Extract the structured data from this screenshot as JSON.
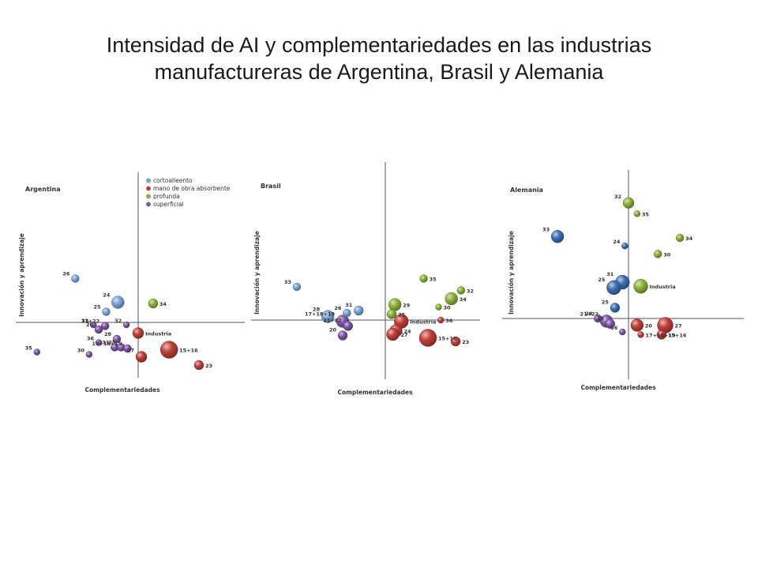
{
  "page": {
    "title_line1": "Intensidad de AI y complementariedades en las industrias",
    "title_line2": "manufactureras de Argentina, Brasil y Alemania"
  },
  "colors": {
    "cortoalleento": "#7aa6d8",
    "cortoalleento_dark": "#3f6fb3",
    "mano_de_obra_absorbente": "#c0403a",
    "profunda": "#8db33a",
    "superficial": "#7e55a8",
    "axis": "#555555"
  },
  "legend": [
    {
      "label": "cortoalleento",
      "color_key": "cortoalleento"
    },
    {
      "label": "mano de obra absorbente",
      "color_key": "mano_de_obra_absorbente"
    },
    {
      "label": "profunda",
      "color_key": "profunda"
    },
    {
      "label": "superficial",
      "color_key": "superficial"
    }
  ],
  "chart_data": [
    {
      "type": "scatter",
      "title": "Argentina",
      "xlabel": "Complementariedades",
      "ylabel": "Innovación y aprendizaje",
      "xlim": [
        -1,
        1
      ],
      "ylim": [
        -1,
        1
      ],
      "legend_position": "top-right",
      "points": [
        {
          "label": "26",
          "x": -0.59,
          "y": 0.37,
          "size": 5,
          "group": "cortoalleento"
        },
        {
          "label": "24",
          "x": -0.19,
          "y": 0.17,
          "size": 8,
          "group": "cortoalleento"
        },
        {
          "label": "25",
          "x": -0.3,
          "y": 0.09,
          "size": 5,
          "group": "cortoalleento"
        },
        {
          "label": "34",
          "x": 0.14,
          "y": 0.16,
          "size": 6,
          "group": "profunda"
        },
        {
          "label": "33",
          "x": -0.42,
          "y": -0.02,
          "size": 4,
          "group": "superficial"
        },
        {
          "label": "21+22",
          "x": -0.31,
          "y": -0.03,
          "size": 5,
          "group": "superficial"
        },
        {
          "label": "20",
          "x": -0.37,
          "y": -0.06,
          "size": 5,
          "group": "superficial"
        },
        {
          "label": "32",
          "x": -0.11,
          "y": -0.02,
          "size": 4,
          "group": "superficial"
        },
        {
          "label": "28",
          "x": -0.2,
          "y": -0.14,
          "size": 5,
          "group": "superficial"
        },
        {
          "label": "36",
          "x": -0.37,
          "y": -0.17,
          "size": 4,
          "group": "superficial"
        },
        {
          "label": "31",
          "x": -0.22,
          "y": -0.21,
          "size": 5,
          "group": "superficial"
        },
        {
          "label": "25",
          "x": -0.16,
          "y": -0.21,
          "size": 5,
          "group": "superficial"
        },
        {
          "label": "17+18+19",
          "x": -0.1,
          "y": -0.22,
          "size": 5,
          "group": "superficial"
        },
        {
          "label": "30",
          "x": -0.46,
          "y": -0.27,
          "size": 4,
          "group": "superficial"
        },
        {
          "label": "35",
          "x": -0.95,
          "y": -0.25,
          "size": 4,
          "group": "superficial"
        },
        {
          "label": "Industria",
          "x": 0.0,
          "y": -0.09,
          "size": 7,
          "group": "mano_de_obra_absorbente"
        },
        {
          "label": "15+16",
          "x": 0.29,
          "y": -0.23,
          "size": 11,
          "group": "mano_de_obra_absorbente"
        },
        {
          "label": "27",
          "x": 0.03,
          "y": -0.29,
          "size": 7,
          "group": "mano_de_obra_absorbente"
        },
        {
          "label": "23",
          "x": 0.57,
          "y": -0.36,
          "size": 6,
          "group": "mano_de_obra_absorbente"
        }
      ]
    },
    {
      "type": "scatter",
      "title": "Brasil",
      "xlabel": "Complementariedades",
      "ylabel": "Innovación y aprendizaje",
      "xlim": [
        -1,
        1
      ],
      "ylim": [
        -1,
        1
      ],
      "points": [
        {
          "label": "33",
          "x": -0.83,
          "y": 0.28,
          "size": 5,
          "group": "cortoalleento"
        },
        {
          "label": "28",
          "x": -0.54,
          "y": 0.03,
          "size": 8,
          "group": "cortoalleento"
        },
        {
          "label": "26",
          "x": -0.36,
          "y": 0.06,
          "size": 5,
          "group": "cortoalleento"
        },
        {
          "label": "31",
          "x": -0.25,
          "y": 0.08,
          "size": 6,
          "group": "cortoalleento"
        },
        {
          "label": "17+18+19",
          "x": -0.4,
          "y": -0.01,
          "size": 8,
          "group": "superficial"
        },
        {
          "label": "21+22",
          "x": -0.35,
          "y": -0.05,
          "size": 6,
          "group": "superficial"
        },
        {
          "label": "20",
          "x": -0.4,
          "y": -0.13,
          "size": 6,
          "group": "superficial"
        },
        {
          "label": "29",
          "x": 0.09,
          "y": 0.13,
          "size": 8,
          "group": "profunda"
        },
        {
          "label": "25",
          "x": 0.06,
          "y": 0.05,
          "size": 6,
          "group": "profunda"
        },
        {
          "label": "35",
          "x": 0.36,
          "y": 0.35,
          "size": 5,
          "group": "profunda"
        },
        {
          "label": "32",
          "x": 0.71,
          "y": 0.25,
          "size": 5,
          "group": "profunda"
        },
        {
          "label": "34",
          "x": 0.62,
          "y": 0.18,
          "size": 8,
          "group": "profunda"
        },
        {
          "label": "30",
          "x": 0.5,
          "y": 0.11,
          "size": 4,
          "group": "profunda"
        },
        {
          "label": "Industria",
          "x": 0.15,
          "y": -0.01,
          "size": 9,
          "group": "mano_de_obra_absorbente"
        },
        {
          "label": "36",
          "x": 0.52,
          "y": 0.0,
          "size": 4,
          "group": "mano_de_obra_absorbente"
        },
        {
          "label": "24",
          "x": 0.1,
          "y": -0.09,
          "size": 8,
          "group": "mano_de_obra_absorbente"
        },
        {
          "label": "27",
          "x": 0.07,
          "y": -0.12,
          "size": 8,
          "group": "mano_de_obra_absorbente"
        },
        {
          "label": "15+16",
          "x": 0.4,
          "y": -0.15,
          "size": 11,
          "group": "mano_de_obra_absorbente"
        },
        {
          "label": "23",
          "x": 0.66,
          "y": -0.18,
          "size": 6,
          "group": "mano_de_obra_absorbente"
        }
      ]
    },
    {
      "type": "scatter",
      "title": "Alemania",
      "xlabel": "Complementariedades",
      "ylabel": "Innovación y aprendizaje",
      "xlim": [
        -1,
        1
      ],
      "ylim": [
        -1,
        1
      ],
      "points": [
        {
          "label": "32",
          "x": 0.0,
          "y": 0.86,
          "size": 7,
          "group": "profunda"
        },
        {
          "label": "35",
          "x": 0.07,
          "y": 0.78,
          "size": 4,
          "group": "profunda"
        },
        {
          "label": "34",
          "x": 0.42,
          "y": 0.6,
          "size": 5,
          "group": "profunda"
        },
        {
          "label": "30",
          "x": 0.24,
          "y": 0.48,
          "size": 5,
          "group": "profunda"
        },
        {
          "label": "33",
          "x": -0.58,
          "y": 0.61,
          "size": 8,
          "group": "cortoalleento_dark"
        },
        {
          "label": "24",
          "x": -0.03,
          "y": 0.54,
          "size": 4,
          "group": "cortoalleento_dark"
        },
        {
          "label": "31",
          "x": -0.05,
          "y": 0.27,
          "size": 9,
          "group": "cortoalleento_dark"
        },
        {
          "label": "25",
          "x": -0.12,
          "y": 0.23,
          "size": 9,
          "group": "cortoalleento_dark"
        },
        {
          "label": "25",
          "x": -0.11,
          "y": 0.08,
          "size": 6,
          "group": "cortoalleento_dark"
        },
        {
          "label": "Industria",
          "x": 0.1,
          "y": 0.24,
          "size": 9,
          "group": "profunda"
        },
        {
          "label": "28",
          "x": -0.25,
          "y": 0.0,
          "size": 5,
          "group": "superficial"
        },
        {
          "label": "21+22",
          "x": -0.18,
          "y": -0.02,
          "size": 8,
          "group": "superficial"
        },
        {
          "label": "26",
          "x": -0.15,
          "y": -0.04,
          "size": 6,
          "group": "superficial"
        },
        {
          "label": "36",
          "x": -0.05,
          "y": -0.1,
          "size": 4,
          "group": "superficial"
        },
        {
          "label": "20",
          "x": 0.07,
          "y": -0.05,
          "size": 8,
          "group": "mano_de_obra_absorbente"
        },
        {
          "label": "27",
          "x": 0.3,
          "y": -0.05,
          "size": 10,
          "group": "mano_de_obra_absorbente"
        },
        {
          "label": "15+16",
          "x": 0.27,
          "y": -0.12,
          "size": 6,
          "group": "mano_de_obra_absorbente"
        },
        {
          "label": "17+18+19",
          "x": 0.1,
          "y": -0.12,
          "size": 4,
          "group": "mano_de_obra_absorbente"
        }
      ]
    }
  ]
}
